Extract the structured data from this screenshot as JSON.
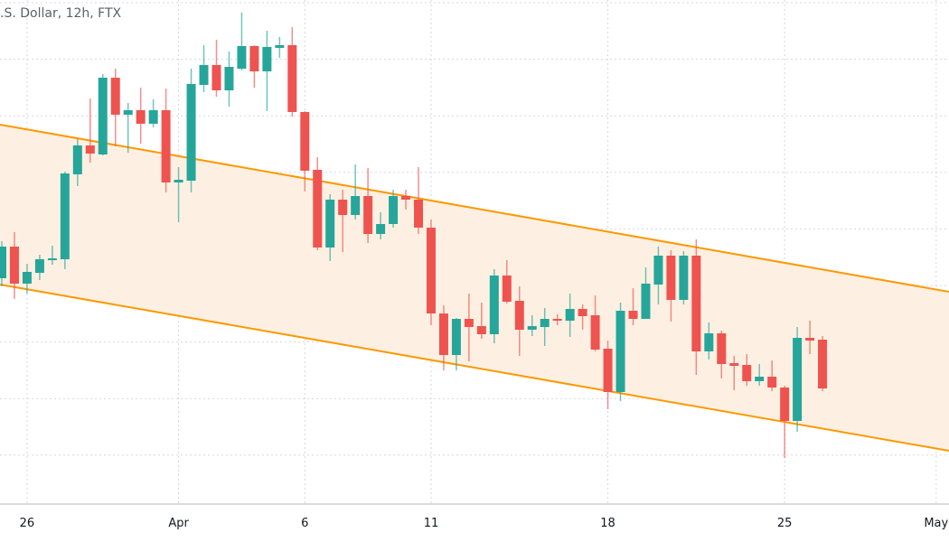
{
  "chart_data": {
    "type": "candlestick",
    "title": ".S. Dollar, 12h, FTX",
    "interval": "12h",
    "colors": {
      "up": "#26a69a",
      "down": "#ef5350",
      "channel_line": "#ff9800",
      "channel_fill": "#fdf0e2",
      "grid": "#d6d8dd",
      "axis_text": "#131722"
    },
    "grid": true,
    "y_axis_labels_visible": false,
    "x_ticks": [
      {
        "label": "26",
        "at": "Mar 26 00:00"
      },
      {
        "label": "Apr",
        "at": "Apr 1 00:00"
      },
      {
        "label": "6",
        "at": "Apr 6 00:00"
      },
      {
        "label": "11",
        "at": "Apr 11 00:00"
      },
      {
        "label": "18",
        "at": "Apr 18 00:00"
      },
      {
        "label": "25",
        "at": "Apr 25 00:00"
      },
      {
        "label": "May",
        "at": "May 1 00:00"
      }
    ],
    "channel": {
      "upper": {
        "start": 462,
        "end": 277
      },
      "lower": {
        "start": 285,
        "end": 101
      }
    },
    "candles_fields": [
      "time",
      "open",
      "high",
      "low",
      "close"
    ],
    "candles": [
      [
        "Mar 25 00:00",
        292,
        333,
        283,
        327
      ],
      [
        "Mar 25 12:00",
        327,
        343,
        269,
        286
      ],
      [
        "Mar 26 00:00",
        286,
        308,
        275,
        299
      ],
      [
        "Mar 26 12:00",
        298,
        318,
        290,
        313
      ],
      [
        "Mar 27 00:00",
        312,
        328,
        307,
        314
      ],
      [
        "Mar 27 12:00",
        313,
        410,
        302,
        408
      ],
      [
        "Mar 28 00:00",
        407,
        446,
        394,
        439
      ],
      [
        "Mar 28 12:00",
        439,
        491,
        420,
        430
      ],
      [
        "Mar 29 00:00",
        429,
        518,
        428,
        514
      ],
      [
        "Mar 29 12:00",
        514,
        524,
        438,
        473
      ],
      [
        "Mar 30 00:00",
        473,
        486,
        431,
        478
      ],
      [
        "Mar 30 12:00",
        478,
        503,
        441,
        463
      ],
      [
        "Mar 31 00:00",
        463,
        490,
        459,
        478
      ],
      [
        "Mar 31 12:00",
        478,
        502,
        387,
        398
      ],
      [
        "Apr 1 00:00",
        398,
        415,
        354,
        401
      ],
      [
        "Apr 1 12:00",
        400,
        524,
        387,
        507
      ],
      [
        "Apr 2 00:00",
        506,
        550,
        498,
        528
      ],
      [
        "Apr 2 12:00",
        528,
        556,
        493,
        500
      ],
      [
        "Apr 3 00:00",
        500,
        543,
        482,
        526
      ],
      [
        "Apr 3 12:00",
        524,
        586,
        522,
        549
      ],
      [
        "Apr 4 00:00",
        549,
        550,
        503,
        521
      ],
      [
        "Apr 4 12:00",
        521,
        566,
        477,
        548
      ],
      [
        "Apr 5 00:00",
        547,
        559,
        536,
        550
      ],
      [
        "Apr 5 12:00",
        550,
        570,
        471,
        476
      ],
      [
        "Apr 6 00:00",
        476,
        477,
        388,
        411
      ],
      [
        "Apr 6 12:00",
        412,
        426,
        323,
        326
      ],
      [
        "Apr 7 00:00",
        326,
        385,
        311,
        379
      ],
      [
        "Apr 7 12:00",
        379,
        390,
        321,
        362
      ],
      [
        "Apr 8 00:00",
        362,
        418,
        357,
        383
      ],
      [
        "Apr 8 12:00",
        383,
        414,
        331,
        341
      ],
      [
        "Apr 9 00:00",
        341,
        365,
        335,
        352
      ],
      [
        "Apr 9 12:00",
        352,
        390,
        348,
        383
      ],
      [
        "Apr 10 00:00",
        383,
        390,
        368,
        379
      ],
      [
        "Apr 10 12:00",
        379,
        415,
        341,
        348
      ],
      [
        "Apr 11 00:00",
        348,
        357,
        240,
        253
      ],
      [
        "Apr 11 12:00",
        253,
        262,
        190,
        207
      ],
      [
        "Apr 12 00:00",
        207,
        248,
        190,
        247
      ],
      [
        "Apr 12 12:00",
        247,
        275,
        200,
        238
      ],
      [
        "Apr 13 00:00",
        239,
        265,
        225,
        230
      ],
      [
        "Apr 13 12:00",
        230,
        302,
        220,
        295
      ],
      [
        "Apr 14 00:00",
        295,
        312,
        264,
        266
      ],
      [
        "Apr 14 12:00",
        267,
        283,
        206,
        235
      ],
      [
        "Apr 15 00:00",
        235,
        251,
        228,
        239
      ],
      [
        "Apr 15 12:00",
        238,
        259,
        217,
        247
      ],
      [
        "Apr 16 00:00",
        247,
        252,
        240,
        245
      ],
      [
        "Apr 16 12:00",
        245,
        275,
        227,
        258
      ],
      [
        "Apr 17 00:00",
        258,
        263,
        235,
        250
      ],
      [
        "Apr 17 12:00",
        251,
        273,
        211,
        213
      ],
      [
        "Apr 18 00:00",
        214,
        223,
        147,
        166
      ],
      [
        "Apr 18 12:00",
        166,
        265,
        156,
        256
      ],
      [
        "Apr 19 00:00",
        256,
        281,
        240,
        247
      ],
      [
        "Apr 19 12:00",
        247,
        304,
        247,
        286
      ],
      [
        "Apr 20 00:00",
        285,
        327,
        263,
        317
      ],
      [
        "Apr 20 12:00",
        317,
        323,
        244,
        268
      ],
      [
        "Apr 21 00:00",
        268,
        322,
        263,
        317
      ],
      [
        "Apr 21 12:00",
        317,
        335,
        185,
        211
      ],
      [
        "Apr 22 00:00",
        211,
        243,
        202,
        231
      ],
      [
        "Apr 22 12:00",
        231,
        234,
        181,
        197
      ],
      [
        "Apr 23 00:00",
        198,
        206,
        168,
        195
      ],
      [
        "Apr 23 12:00",
        196,
        208,
        173,
        178
      ],
      [
        "Apr 24 00:00",
        178,
        197,
        173,
        183
      ],
      [
        "Apr 24 12:00",
        183,
        201,
        167,
        171
      ],
      [
        "Apr 25 00:00",
        171,
        173,
        93,
        134
      ],
      [
        "Apr 25 12:00",
        134,
        238,
        122,
        226
      ],
      [
        "Apr 26 00:00",
        226,
        245,
        208,
        223
      ],
      [
        "Apr 26 12:00",
        224,
        228,
        167,
        170
      ]
    ]
  }
}
